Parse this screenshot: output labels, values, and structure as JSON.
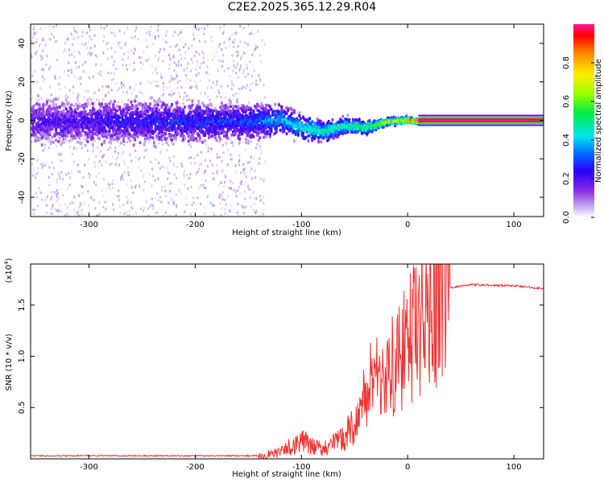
{
  "title": "C2E2.2025.365.12.29.R04",
  "chart_data": [
    {
      "type": "heatmap",
      "title": "C2E2.2025.365.12.29.R04",
      "xlabel": "Height of straight line (km)",
      "ylabel": "Frequency (Hz)",
      "xlim": [
        -355,
        128
      ],
      "ylim": [
        -50,
        50
      ],
      "x_ticks": [
        "-300",
        "-200",
        "-100",
        "0",
        "100"
      ],
      "y_ticks": [
        "40",
        "20",
        "0",
        "-20",
        "-40"
      ],
      "colorbar": {
        "label": "Normalized spectral amplitude",
        "range": [
          0,
          1
        ],
        "ticks": [
          "0.0",
          "0.2",
          "0.4",
          "0.6",
          "0.8"
        ]
      },
      "ridge": {
        "x": [
          -350,
          -300,
          -250,
          -200,
          -150,
          -120,
          -100,
          -80,
          -60,
          -40,
          -20,
          0,
          10,
          128
        ],
        "frequency": [
          0,
          0,
          0,
          0,
          0,
          1,
          -3,
          -5,
          -2,
          -3,
          0,
          1,
          0,
          0
        ],
        "spread_hz": [
          12,
          12,
          12,
          11,
          10,
          8,
          7,
          6,
          5,
          4,
          2,
          2,
          1,
          1
        ],
        "peak_amplitude": [
          0.2,
          0.22,
          0.25,
          0.28,
          0.3,
          0.4,
          0.45,
          0.5,
          0.5,
          0.55,
          0.75,
          0.85,
          1.0,
          1.0
        ]
      }
    },
    {
      "type": "line",
      "xlabel": "Height of straight line (km)",
      "ylabel": "SNR (10 * v/v)",
      "scale_label": "(x10",
      "scale_exponent": "4",
      "xlim": [
        -355,
        128
      ],
      "ylim": [
        0,
        1.9
      ],
      "x_ticks": [
        "-300",
        "-200",
        "-100",
        "0",
        "100"
      ],
      "y_ticks": [
        "1.5",
        "1.0",
        "0.5"
      ],
      "series": [
        {
          "name": "SNR",
          "color": "#ee3333",
          "x": [
            -355,
            -300,
            -200,
            -140,
            -120,
            -110,
            -100,
            -90,
            -80,
            -60,
            -50,
            -40,
            -30,
            -20,
            -10,
            0,
            10,
            20,
            30,
            40,
            60,
            80,
            100,
            128
          ],
          "y": [
            0.03,
            0.03,
            0.03,
            0.03,
            0.06,
            0.12,
            0.18,
            0.12,
            0.1,
            0.2,
            0.35,
            0.6,
            0.9,
            0.8,
            0.95,
            1.1,
            1.35,
            1.5,
            1.6,
            1.67,
            1.7,
            1.69,
            1.69,
            1.66
          ]
        }
      ]
    }
  ]
}
